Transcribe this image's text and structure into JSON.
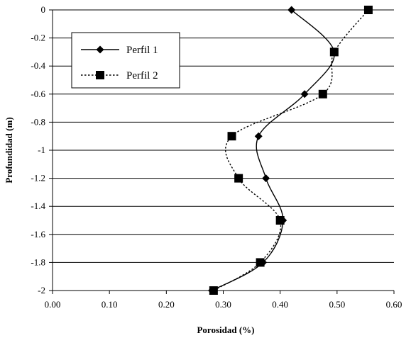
{
  "chart_data": {
    "type": "line",
    "xlabel": "Porosidad (%)",
    "ylabel": "Profundidad (m)",
    "xlim": [
      0,
      0.6
    ],
    "ylim": [
      -2,
      0
    ],
    "x_ticks": [
      "0.00",
      "0.10",
      "0.20",
      "0.30",
      "0.40",
      "0.50",
      "0.60"
    ],
    "y_ticks": [
      "0",
      "-0.2",
      "-0.4",
      "-0.6",
      "-0.8",
      "-1",
      "-1.2",
      "-1.4",
      "-1.6",
      "-1.8",
      "-2"
    ],
    "grid": "horizontal",
    "legend_position": "top-left",
    "series": [
      {
        "name": "Perfil 1",
        "marker": "diamond",
        "line_style": "solid",
        "color": "#000000",
        "points": [
          {
            "x": 0.42,
            "y": 0.0
          },
          {
            "x": 0.495,
            "y": -0.3
          },
          {
            "x": 0.443,
            "y": -0.6
          },
          {
            "x": 0.362,
            "y": -0.9
          },
          {
            "x": 0.375,
            "y": -1.2
          },
          {
            "x": 0.405,
            "y": -1.5
          },
          {
            "x": 0.37,
            "y": -1.8
          },
          {
            "x": 0.28,
            "y": -2.0
          }
        ]
      },
      {
        "name": "Perfil 2",
        "marker": "square",
        "line_style": "dotted",
        "color": "#000000",
        "points": [
          {
            "x": 0.555,
            "y": 0.0
          },
          {
            "x": 0.495,
            "y": -0.3
          },
          {
            "x": 0.475,
            "y": -0.6
          },
          {
            "x": 0.315,
            "y": -0.9
          },
          {
            "x": 0.327,
            "y": -1.2
          },
          {
            "x": 0.4,
            "y": -1.5
          },
          {
            "x": 0.365,
            "y": -1.8
          },
          {
            "x": 0.283,
            "y": -2.0
          }
        ]
      }
    ]
  }
}
